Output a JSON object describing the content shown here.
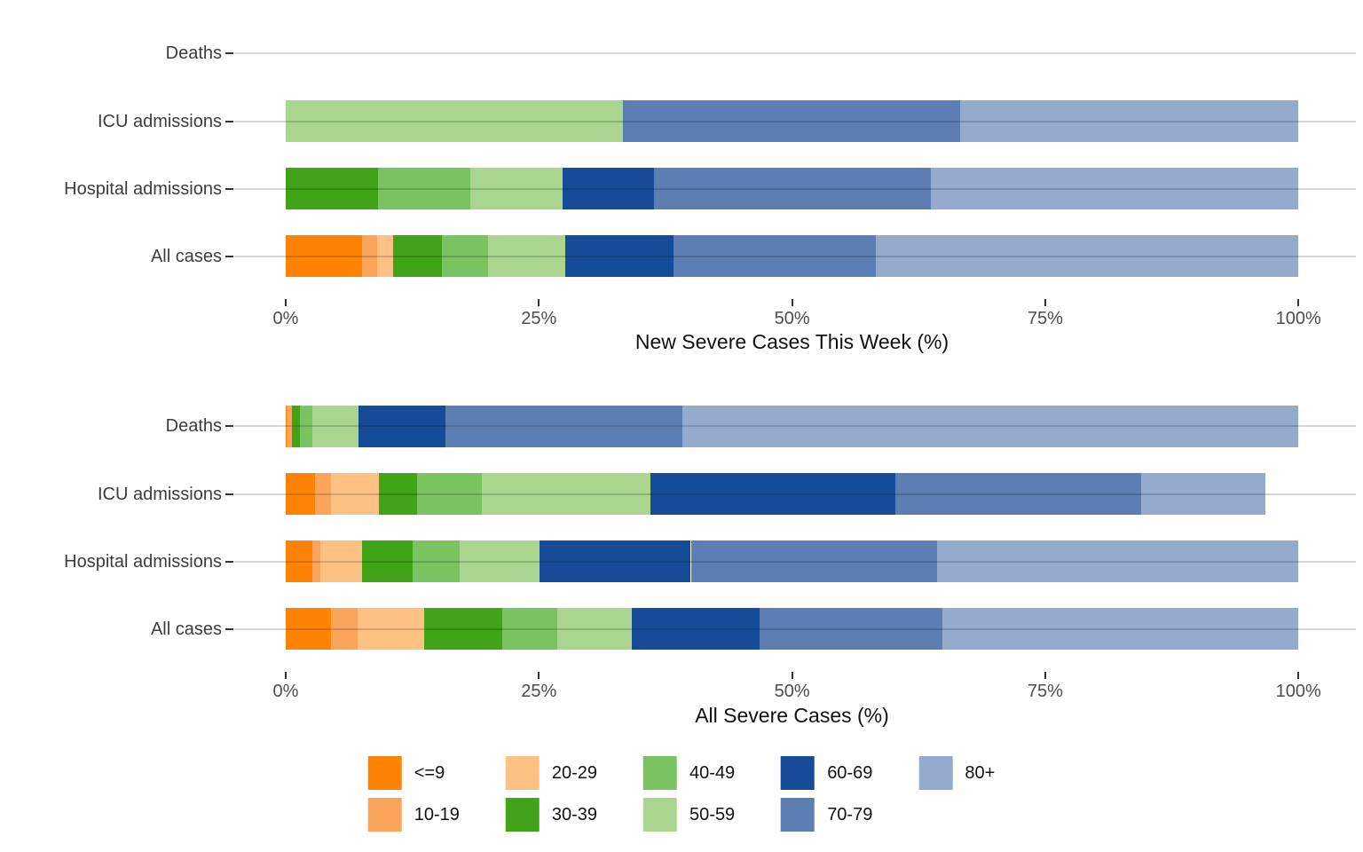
{
  "colors": {
    "gridline": "#d6d6d6",
    "tick": "#333333",
    "tick_label": "#4d4d4d",
    "category_label": "#3c3c3c",
    "axis_title": "#111111"
  },
  "legend": {
    "items": [
      {
        "label": "<=9",
        "color": "#FE8204"
      },
      {
        "label": "10-19",
        "color": "#FBA45C"
      },
      {
        "label": "20-29",
        "color": "#FDC283"
      },
      {
        "label": "30-39",
        "color": "#41A317"
      },
      {
        "label": "40-49",
        "color": "#79C360"
      },
      {
        "label": "50-59",
        "color": "#A9D58F"
      },
      {
        "label": "60-69",
        "color": "#154B97"
      },
      {
        "label": "70-79",
        "color": "#5B7FB2"
      },
      {
        "label": "80+",
        "color": "#95ABCE"
      }
    ]
  },
  "chart_data": [
    {
      "type": "bar",
      "orientation": "horizontal",
      "stacked": true,
      "xlabel": "New Severe Cases This Week (%)",
      "xlim": [
        0,
        100
      ],
      "grid": "horizontal-category-lines",
      "legend_position": "bottom",
      "categories": [
        "Deaths",
        "ICU admissions",
        "Hospital admissions",
        "All cases"
      ],
      "x_ticks": [
        0,
        25,
        50,
        75,
        100
      ],
      "x_tick_labels": [
        "0%",
        "25%",
        "50%",
        "75%",
        "100%"
      ],
      "series": [
        {
          "name": "<=9",
          "color": "#FE8204",
          "values": [
            0,
            0,
            0,
            7.5
          ]
        },
        {
          "name": "10-19",
          "color": "#FBA45C",
          "values": [
            0,
            0,
            0,
            1.5
          ]
        },
        {
          "name": "20-29",
          "color": "#FDC283",
          "values": [
            0,
            0,
            0,
            1.6
          ]
        },
        {
          "name": "30-39",
          "color": "#41A317",
          "values": [
            0,
            0,
            9.1,
            4.8
          ]
        },
        {
          "name": "40-49",
          "color": "#79C360",
          "values": [
            0,
            0,
            9.1,
            4.6
          ]
        },
        {
          "name": "50-59",
          "color": "#A9D58F",
          "values": [
            0,
            33.3,
            9.1,
            7.6
          ]
        },
        {
          "name": "60-69",
          "color": "#154B97",
          "values": [
            0,
            0,
            9.1,
            10.7
          ]
        },
        {
          "name": "70-79",
          "color": "#5B7FB2",
          "values": [
            0,
            33.3,
            27.3,
            20.0
          ]
        },
        {
          "name": "80+",
          "color": "#95ABCE",
          "values": [
            0,
            33.4,
            36.3,
            41.7
          ]
        }
      ]
    },
    {
      "type": "bar",
      "orientation": "horizontal",
      "stacked": true,
      "xlabel": "All Severe Cases (%)",
      "xlim": [
        0,
        100
      ],
      "grid": "horizontal-category-lines",
      "legend_position": "bottom",
      "categories": [
        "Deaths",
        "ICU admissions",
        "Hospital admissions",
        "All cases"
      ],
      "x_ticks": [
        0,
        25,
        50,
        75,
        100
      ],
      "x_tick_labels": [
        "0%",
        "25%",
        "50%",
        "75%",
        "100%"
      ],
      "series": [
        {
          "name": "<=9",
          "color": "#FE8204",
          "values": [
            0.1,
            2.9,
            2.6,
            4.5
          ]
        },
        {
          "name": "10-19",
          "color": "#FBA45C",
          "values": [
            0.5,
            1.6,
            0.8,
            2.6
          ]
        },
        {
          "name": "20-29",
          "color": "#FDC283",
          "values": [
            0,
            4.7,
            4.1,
            6.6
          ]
        },
        {
          "name": "30-39",
          "color": "#41A317",
          "values": [
            0.8,
            3.8,
            5.0,
            7.7
          ]
        },
        {
          "name": "40-49",
          "color": "#79C360",
          "values": [
            1.2,
            6.4,
            4.7,
            5.4
          ]
        },
        {
          "name": "50-59",
          "color": "#A9D58F",
          "values": [
            4.6,
            16.6,
            7.9,
            7.4
          ]
        },
        {
          "name": "60-69",
          "color": "#154B97",
          "values": [
            8.6,
            24.2,
            14.9,
            12.6
          ]
        },
        {
          "name": "70-79",
          "color": "#5B7FB2",
          "values": [
            23.4,
            24.3,
            24.3,
            18.0
          ]
        },
        {
          "name": "80+",
          "color": "#95ABCE",
          "values": [
            60.8,
            12.2,
            35.7,
            35.2
          ]
        }
      ]
    }
  ]
}
